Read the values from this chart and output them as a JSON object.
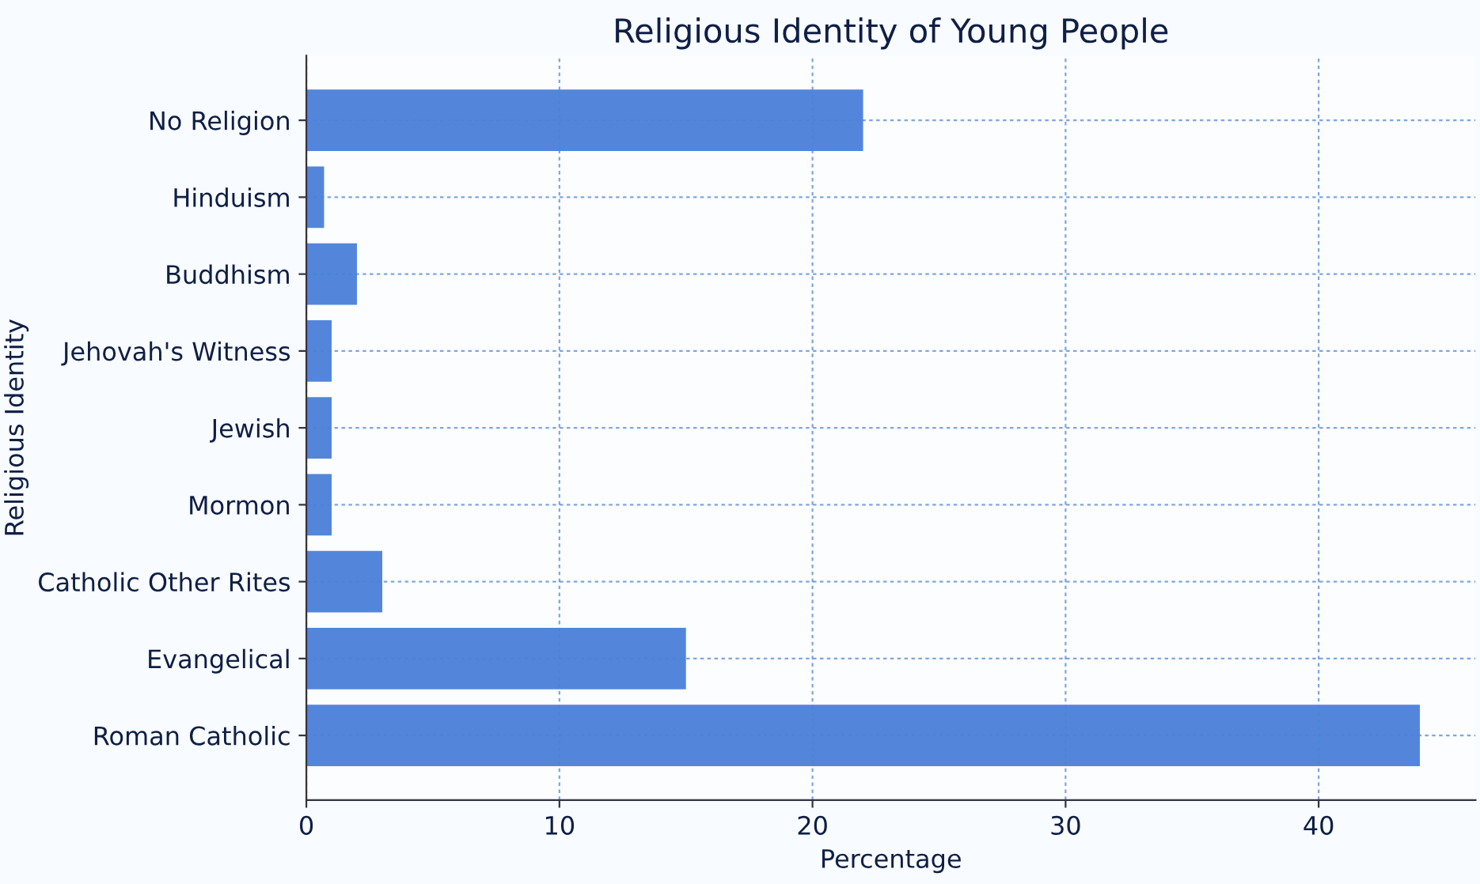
{
  "chart_data": {
    "type": "bar",
    "orientation": "horizontal",
    "title": "Religious Identity of Young People",
    "xlabel": "Percentage",
    "ylabel": "Religious Identity",
    "categories": [
      "No Religion",
      "Hinduism",
      "Buddhism",
      "Jehovah's Witness",
      "Jewish",
      "Mormon",
      "Catholic Other Rites",
      "Evangelical",
      "Roman Catholic"
    ],
    "values": [
      22,
      0.7,
      2,
      1,
      1,
      1,
      3,
      15,
      44
    ],
    "color": "#4a7fd9",
    "xlim": [
      0,
      46.2
    ],
    "xticks": [
      0,
      10,
      20,
      30,
      40
    ],
    "grid": true
  }
}
